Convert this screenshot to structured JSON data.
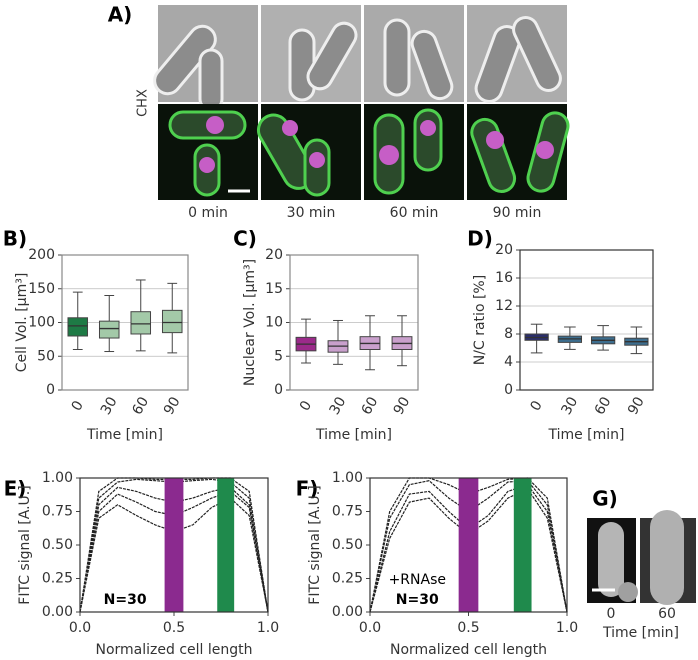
{
  "panel_a": {
    "label": "A)",
    "condition": "CHX",
    "times": [
      "0 min",
      "30 min",
      "60 min",
      "90 min"
    ]
  },
  "panel_g": {
    "label": "G)",
    "times": [
      "0",
      "60"
    ],
    "xlabel": "Time [min]"
  },
  "chart_data": [
    {
      "type": "box",
      "panel_label": "B)",
      "ylabel": "Cell Vol. [μm³]",
      "xlabel": "Time [min]",
      "categories": [
        "0",
        "30",
        "60",
        "90"
      ],
      "min": [
        60,
        57,
        58,
        55
      ],
      "q1": [
        80,
        77,
        83,
        85
      ],
      "median": [
        95,
        91,
        98,
        100
      ],
      "q3": [
        107,
        102,
        116,
        118
      ],
      "max": [
        145,
        140,
        163,
        158
      ],
      "colors": [
        "#1e7a45",
        "#a3c9a8",
        "#a3c9a8",
        "#a3c9a8"
      ],
      "ylim": [
        0,
        200
      ],
      "yticks": [
        0,
        50,
        100,
        150,
        200
      ],
      "grid": true
    },
    {
      "type": "box",
      "panel_label": "C)",
      "ylabel": "Nuclear Vol. [μm³]",
      "xlabel": "Time [min]",
      "categories": [
        "0",
        "30",
        "60",
        "90"
      ],
      "min": [
        4,
        3.8,
        3,
        3.6
      ],
      "q1": [
        5.8,
        5.6,
        6,
        6
      ],
      "median": [
        6.8,
        6.5,
        6.9,
        6.9
      ],
      "q3": [
        7.8,
        7.3,
        7.9,
        7.9
      ],
      "max": [
        10.5,
        10.3,
        11,
        11
      ],
      "colors": [
        "#9b2a8a",
        "#c9a0cc",
        "#c9a0cc",
        "#c9a0cc"
      ],
      "ylim": [
        0,
        20
      ],
      "yticks": [
        0,
        5,
        10,
        15,
        20
      ],
      "grid": true
    },
    {
      "type": "box",
      "panel_label": "D)",
      "ylabel": "N/C ratio [%]",
      "xlabel": "Time [min]",
      "categories": [
        "0",
        "30",
        "60",
        "90"
      ],
      "min": [
        5.3,
        5.8,
        5.7,
        5.2
      ],
      "q1": [
        7.1,
        6.8,
        6.6,
        6.4
      ],
      "median": [
        7.5,
        7.3,
        7.1,
        6.9
      ],
      "q3": [
        8.0,
        7.7,
        7.6,
        7.4
      ],
      "max": [
        9.4,
        9,
        9.2,
        9
      ],
      "colors": [
        "#2b2f6b",
        "#3d6e8f",
        "#3d6e8f",
        "#3d6e8f"
      ],
      "ylim": [
        0,
        20
      ],
      "yticks": [
        0,
        4,
        8,
        12,
        16,
        20
      ],
      "grid": true
    },
    {
      "type": "line",
      "panel_label": "E)",
      "ylabel": "FITC signal [A.U.]",
      "xlabel": "Normalized cell length",
      "annotations": [
        "N=30"
      ],
      "x": [
        0,
        0.1,
        0.2,
        0.3,
        0.4,
        0.5,
        0.6,
        0.7,
        0.8,
        0.9,
        1.0
      ],
      "series": [
        {
          "color": "#222222",
          "values": [
            0,
            0.85,
            0.97,
            0.99,
            0.98,
            0.97,
            0.98,
            0.99,
            0.97,
            0.85,
            0
          ]
        },
        {
          "color": "#222222",
          "values": [
            0,
            0.8,
            0.93,
            0.9,
            0.85,
            0.82,
            0.85,
            0.9,
            0.93,
            0.8,
            0
          ]
        },
        {
          "color": "#222222",
          "values": [
            0,
            0.75,
            0.88,
            0.82,
            0.75,
            0.72,
            0.78,
            0.85,
            0.9,
            0.78,
            0
          ]
        },
        {
          "color": "#222222",
          "values": [
            0,
            0.7,
            0.8,
            0.72,
            0.65,
            0.6,
            0.65,
            0.78,
            0.85,
            0.72,
            0
          ]
        },
        {
          "color": "#222222",
          "values": [
            0,
            0.9,
            1.0,
            1.0,
            0.99,
            0.99,
            0.99,
            1.0,
            1.0,
            0.9,
            0
          ]
        }
      ],
      "bands": [
        {
          "x": [
            0.45,
            0.55
          ],
          "color": "#8b2a8f"
        },
        {
          "x": [
            0.73,
            0.82
          ],
          "color": "#1f8a4c"
        }
      ],
      "xlim": [
        0,
        1
      ],
      "xticks": [
        {
          "value": 0,
          "label": "0.0"
        },
        {
          "value": 0.5,
          "label": "0.5"
        },
        {
          "value": 1,
          "label": "1.0"
        }
      ],
      "ylim": [
        0,
        1
      ],
      "yticks": [
        {
          "value": 0,
          "label": "0.00"
        },
        {
          "value": 0.25,
          "label": "0.25"
        },
        {
          "value": 0.5,
          "label": "0.50"
        },
        {
          "value": 0.75,
          "label": "0.75"
        },
        {
          "value": 1,
          "label": "1.00"
        }
      ],
      "grid": false
    },
    {
      "type": "line",
      "panel_label": "F)",
      "ylabel": "FITC signal [A.U.]",
      "xlabel": "Normalized cell length",
      "annotations": [
        "+RNAse",
        "N=30"
      ],
      "x": [
        0,
        0.1,
        0.2,
        0.3,
        0.4,
        0.5,
        0.6,
        0.7,
        0.8,
        0.9,
        1.0
      ],
      "series": [
        {
          "color": "#222222",
          "values": [
            0,
            0.7,
            0.95,
            0.98,
            0.85,
            0.75,
            0.85,
            0.97,
            0.98,
            0.8,
            0
          ]
        },
        {
          "color": "#222222",
          "values": [
            0,
            0.6,
            0.88,
            0.9,
            0.75,
            0.62,
            0.72,
            0.9,
            0.95,
            0.75,
            0
          ]
        },
        {
          "color": "#222222",
          "values": [
            0,
            0.55,
            0.82,
            0.85,
            0.7,
            0.58,
            0.68,
            0.85,
            0.92,
            0.7,
            0
          ]
        },
        {
          "color": "#222222",
          "values": [
            0,
            0.75,
            1,
            1,
            0.95,
            0.88,
            0.93,
            0.99,
            1,
            0.85,
            0
          ]
        }
      ],
      "bands": [
        {
          "x": [
            0.45,
            0.55
          ],
          "color": "#8b2a8f"
        },
        {
          "x": [
            0.73,
            0.82
          ],
          "color": "#1f8a4c"
        }
      ],
      "xlim": [
        0,
        1
      ],
      "xticks": [
        {
          "value": 0,
          "label": "0.0"
        },
        {
          "value": 0.5,
          "label": "0.5"
        },
        {
          "value": 1,
          "label": "1.0"
        }
      ],
      "ylim": [
        0,
        1
      ],
      "yticks": [
        {
          "value": 0,
          "label": "0.00"
        },
        {
          "value": 0.25,
          "label": "0.25"
        },
        {
          "value": 0.5,
          "label": "0.50"
        },
        {
          "value": 0.75,
          "label": "0.75"
        },
        {
          "value": 1,
          "label": "1.00"
        }
      ],
      "grid": false
    }
  ]
}
